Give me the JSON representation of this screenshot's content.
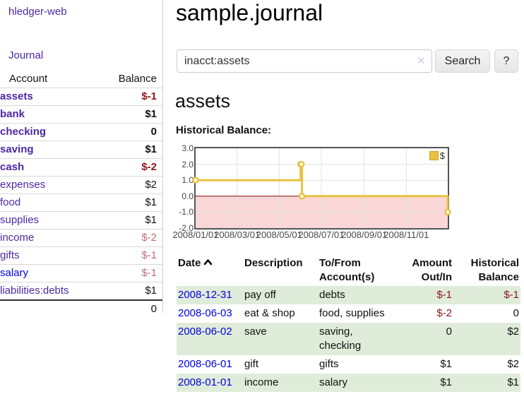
{
  "palette": {
    "link_purple": "#4c28a3",
    "link_blue": "#0000dd",
    "negative_strong": "#8b1515",
    "negative_soft": "#c06e79",
    "row_stripe_green": "#e0ecda",
    "chart_line": "#e9c241",
    "chart_negative_fill": "#f9d7d7",
    "chart_zero_line": "#7c0a0a"
  },
  "sidebar": {
    "brand": "hledger-web",
    "journal_link": "Journal",
    "accounts": {
      "headers": {
        "account": "Account",
        "balance": "Balance"
      },
      "rows": [
        {
          "label": "assets",
          "indent": 1,
          "bold": true,
          "balance": "$-1",
          "tone": "negative"
        },
        {
          "label": "bank",
          "indent": 2,
          "bold": true,
          "balance": "$1",
          "tone": "normal"
        },
        {
          "label": "checking",
          "indent": 3,
          "bold": true,
          "balance": "0",
          "tone": "normal"
        },
        {
          "label": "saving",
          "indent": 3,
          "bold": true,
          "balance": "$1",
          "tone": "normal"
        },
        {
          "label": "cash",
          "indent": 2,
          "bold": true,
          "balance": "$-2",
          "tone": "negative"
        },
        {
          "label": "expenses",
          "indent": 1,
          "bold": false,
          "balance": "$2",
          "tone": "normal"
        },
        {
          "label": "food",
          "indent": 2,
          "bold": false,
          "balance": "$1",
          "tone": "normal"
        },
        {
          "label": "supplies",
          "indent": 2,
          "bold": false,
          "balance": "$1",
          "tone": "normal"
        },
        {
          "label": "income",
          "indent": 1,
          "bold": false,
          "balance": "$-2",
          "tone": "negative-soft"
        },
        {
          "label": "gifts",
          "indent": 2,
          "bold": false,
          "balance": "$-1",
          "tone": "negative-soft"
        },
        {
          "label": "salary",
          "indent": 2,
          "bold": false,
          "balance": "$-1",
          "tone": "negative-soft"
        },
        {
          "label": "liabilities:debts",
          "indent": 1,
          "bold": false,
          "balance": "$1",
          "tone": "normal"
        }
      ],
      "total": "0"
    }
  },
  "header": {
    "title": "sample.journal"
  },
  "search": {
    "value": "inacct:assets",
    "clear_icon": "✕",
    "button_label": "Search",
    "help_label": "?"
  },
  "account_page": {
    "heading": "assets"
  },
  "chart_data": {
    "type": "line",
    "title": "Historical Balance:",
    "series": [
      {
        "name": "$",
        "color": "#e9c241",
        "step": true,
        "points": [
          {
            "date": "2008-01-01",
            "value": 1
          },
          {
            "date": "2008-06-01",
            "value": 2
          },
          {
            "date": "2008-06-02",
            "value": 2
          },
          {
            "date": "2008-06-03",
            "value": 0
          },
          {
            "date": "2008-12-31",
            "value": -1
          }
        ]
      }
    ],
    "xrange": [
      "2008-01-01",
      "2008-12-31"
    ],
    "ylim": [
      -2.0,
      3.0
    ],
    "yticks": [
      "3.0",
      "2.0",
      "1.0",
      "0.0",
      "-1.0",
      "-2.0"
    ],
    "xticks": [
      {
        "label": "2008/01/01",
        "date": "2008-01-01"
      },
      {
        "label": "2008/03/01",
        "date": "2008-03-01"
      },
      {
        "label": "2008/05/01",
        "date": "2008-05-01"
      },
      {
        "label": "2008/07/01",
        "date": "2008-07-01"
      },
      {
        "label": "2008/09/01",
        "date": "2008-09-01"
      },
      {
        "label": "2008/11/01",
        "date": "2008-11-01"
      }
    ],
    "grid": true,
    "legend_position": "top-right",
    "negative_region_color": "#f9d7d7",
    "zero_line_color": "#7c0a0a"
  },
  "transactions": {
    "headers": {
      "date": "Date",
      "description": "Description",
      "accounts": "To/From Account(s)",
      "amount": "Amount Out/In",
      "balance": "Historical Balance"
    },
    "rows": [
      {
        "date": "2008-12-31",
        "description": "pay off",
        "accounts": "debts",
        "amount": "$-1",
        "amount_tone": "negative",
        "balance": "$-1",
        "balance_tone": "negative"
      },
      {
        "date": "2008-06-03",
        "description": "eat & shop",
        "accounts": "food, supplies",
        "amount": "$-2",
        "amount_tone": "negative",
        "balance": "0",
        "balance_tone": "normal"
      },
      {
        "date": "2008-06-02",
        "description": "save",
        "accounts": "saving, checking",
        "amount": "0",
        "amount_tone": "normal",
        "balance": "$2",
        "balance_tone": "normal"
      },
      {
        "date": "2008-06-01",
        "description": "gift",
        "accounts": "gifts",
        "amount": "$1",
        "amount_tone": "normal",
        "balance": "$2",
        "balance_tone": "normal"
      },
      {
        "date": "2008-01-01",
        "description": "income",
        "accounts": "salary",
        "amount": "$1",
        "amount_tone": "normal",
        "balance": "$1",
        "balance_tone": "normal"
      }
    ]
  }
}
